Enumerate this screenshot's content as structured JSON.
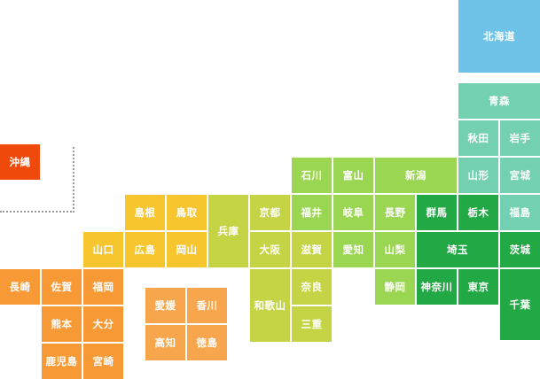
{
  "map": {
    "regions": {
      "hokkaido": "#6fc3e9",
      "tohoku": "#73d0b0",
      "kanto": "#23a846",
      "chubu": "#9bd652",
      "kinki": "#c4d444",
      "chugoku": "#f7c52d",
      "shikoku": "#f7a64d",
      "kyushu": "#f79a36",
      "okinawa": "#ef4a0b"
    },
    "prefectures": [
      {
        "id": "hokkaido",
        "name": "北海道",
        "region": "hokkaido"
      },
      {
        "id": "aomori",
        "name": "青森",
        "region": "tohoku"
      },
      {
        "id": "akita",
        "name": "秋田",
        "region": "tohoku"
      },
      {
        "id": "iwate",
        "name": "岩手",
        "region": "tohoku"
      },
      {
        "id": "yamagata",
        "name": "山形",
        "region": "tohoku"
      },
      {
        "id": "miyagi",
        "name": "宮城",
        "region": "tohoku"
      },
      {
        "id": "fukushima",
        "name": "福島",
        "region": "tohoku"
      },
      {
        "id": "ishikawa",
        "name": "石川",
        "region": "chubu"
      },
      {
        "id": "toyama",
        "name": "富山",
        "region": "chubu"
      },
      {
        "id": "niigata",
        "name": "新潟",
        "region": "chubu"
      },
      {
        "id": "fukui",
        "name": "福井",
        "region": "chubu"
      },
      {
        "id": "gifu",
        "name": "岐阜",
        "region": "chubu"
      },
      {
        "id": "nagano",
        "name": "長野",
        "region": "chubu"
      },
      {
        "id": "yamanashi",
        "name": "山梨",
        "region": "chubu"
      },
      {
        "id": "aichi",
        "name": "愛知",
        "region": "chubu"
      },
      {
        "id": "shizuoka",
        "name": "静岡",
        "region": "chubu"
      },
      {
        "id": "gunma",
        "name": "群馬",
        "region": "kanto"
      },
      {
        "id": "tochigi",
        "name": "栃木",
        "region": "kanto"
      },
      {
        "id": "ibaraki",
        "name": "茨城",
        "region": "kanto"
      },
      {
        "id": "saitama",
        "name": "埼玉",
        "region": "kanto"
      },
      {
        "id": "kanagawa",
        "name": "神奈川",
        "region": "kanto"
      },
      {
        "id": "tokyo",
        "name": "東京",
        "region": "kanto"
      },
      {
        "id": "chiba",
        "name": "千葉",
        "region": "kanto"
      },
      {
        "id": "kyoto",
        "name": "京都",
        "region": "kinki"
      },
      {
        "id": "hyogo",
        "name": "兵庫",
        "region": "kinki"
      },
      {
        "id": "shiga",
        "name": "滋賀",
        "region": "kinki"
      },
      {
        "id": "osaka",
        "name": "大阪",
        "region": "kinki"
      },
      {
        "id": "nara",
        "name": "奈良",
        "region": "kinki"
      },
      {
        "id": "wakayama",
        "name": "和歌山",
        "region": "kinki"
      },
      {
        "id": "mie",
        "name": "三重",
        "region": "kinki"
      },
      {
        "id": "shimane",
        "name": "島根",
        "region": "chugoku"
      },
      {
        "id": "tottori",
        "name": "鳥取",
        "region": "chugoku"
      },
      {
        "id": "yamaguchi",
        "name": "山口",
        "region": "chugoku"
      },
      {
        "id": "hiroshima",
        "name": "広島",
        "region": "chugoku"
      },
      {
        "id": "okayama",
        "name": "岡山",
        "region": "chugoku"
      },
      {
        "id": "ehime",
        "name": "愛媛",
        "region": "shikoku"
      },
      {
        "id": "kagawa",
        "name": "香川",
        "region": "shikoku"
      },
      {
        "id": "kochi",
        "name": "高知",
        "region": "shikoku"
      },
      {
        "id": "tokushima",
        "name": "徳島",
        "region": "shikoku"
      },
      {
        "id": "nagasaki",
        "name": "長崎",
        "region": "kyushu"
      },
      {
        "id": "saga",
        "name": "佐賀",
        "region": "kyushu"
      },
      {
        "id": "fukuoka",
        "name": "福岡",
        "region": "kyushu"
      },
      {
        "id": "kumamoto",
        "name": "熊本",
        "region": "kyushu"
      },
      {
        "id": "oita",
        "name": "大分",
        "region": "kyushu"
      },
      {
        "id": "kagoshima",
        "name": "鹿児島",
        "region": "kyushu"
      },
      {
        "id": "miyazaki",
        "name": "宮崎",
        "region": "kyushu"
      },
      {
        "id": "okinawa",
        "name": "沖縄",
        "region": "okinawa"
      }
    ]
  }
}
